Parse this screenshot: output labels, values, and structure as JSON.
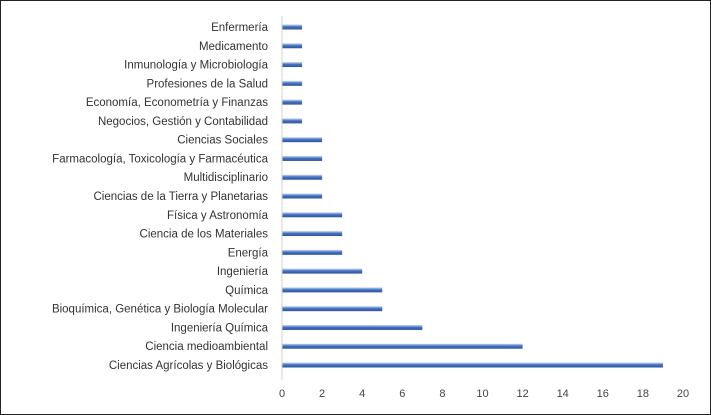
{
  "chart_data": {
    "type": "bar",
    "orientation": "horizontal",
    "title": "",
    "xlabel": "",
    "ylabel": "",
    "categories": [
      "Enfermería",
      "Medicamento",
      "Inmunología y Microbiología",
      "Profesiones de la Salud",
      "Economía, Econometría y Finanzas",
      "Negocios, Gestión y Contabilidad",
      "Ciencias Sociales",
      "Farmacología, Toxicología y Farmacéutica",
      "Multidisciplinario",
      "Ciencias de la Tierra y Planetarias",
      "Física y Astronomía",
      "Ciencia de los Materiales",
      "Energía",
      "Ingeniería",
      "Química",
      "Bioquímica, Genética y Biología Molecular",
      "Ingeniería Química",
      "Ciencia medioambiental",
      "Ciencias Agrícolas y Biológicas"
    ],
    "values": [
      1,
      1,
      1,
      1,
      1,
      1,
      2,
      2,
      2,
      2,
      3,
      3,
      3,
      4,
      5,
      5,
      7,
      12,
      19
    ],
    "xlim": [
      0,
      20
    ],
    "xticks": [
      0,
      2,
      4,
      6,
      8,
      10,
      12,
      14,
      16,
      18,
      20
    ],
    "grid": false,
    "legend": "none",
    "bar_color": "#4472C4"
  }
}
